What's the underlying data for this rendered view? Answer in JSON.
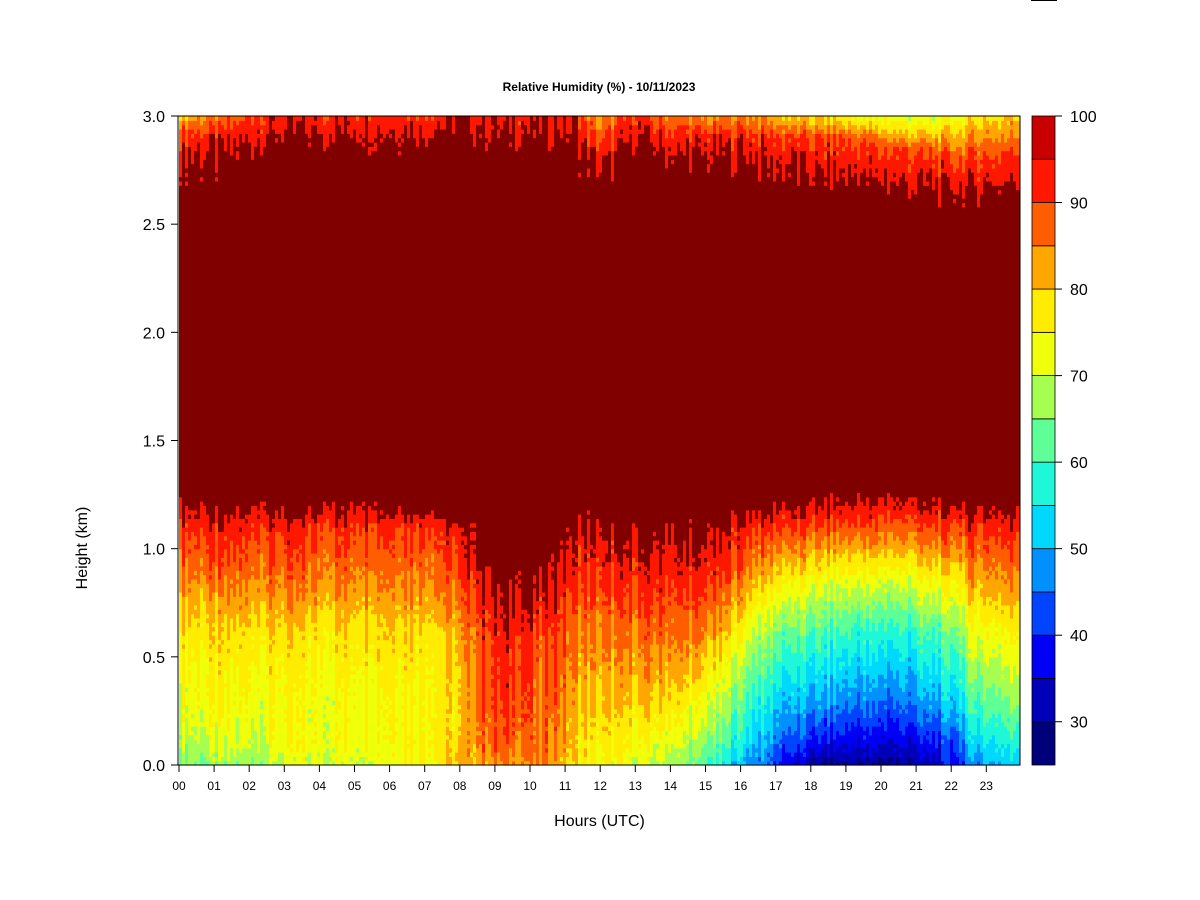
{
  "chart_data": {
    "type": "heatmap",
    "title": "Relative Humidity (%) - 10/11/2023",
    "xlabel": "Hours (UTC)",
    "ylabel": "Height (km)",
    "x_ticks": [
      "00",
      "01",
      "02",
      "03",
      "04",
      "05",
      "06",
      "07",
      "08",
      "09",
      "10",
      "11",
      "12",
      "13",
      "14",
      "15",
      "16",
      "17",
      "18",
      "19",
      "20",
      "21",
      "22",
      "23"
    ],
    "x_range": [
      0,
      23.9
    ],
    "y_ticks": [
      "0.0",
      "0.5",
      "1.0",
      "1.5",
      "2.0",
      "2.5",
      "3.0"
    ],
    "y_range": [
      0,
      3.0
    ],
    "colorbar": {
      "range": [
        25,
        100
      ],
      "ticks": [
        "30",
        "40",
        "50",
        "60",
        "70",
        "80",
        "90",
        "100"
      ],
      "levels": [
        25,
        30,
        35,
        40,
        45,
        50,
        55,
        60,
        65,
        70,
        75,
        80,
        85,
        90,
        95,
        100
      ],
      "colors": [
        "#00007a",
        "#0000b8",
        "#0000f5",
        "#0044ff",
        "#0090ff",
        "#00d8ff",
        "#1ef7d8",
        "#5fff97",
        "#a6ff50",
        "#f0ff0a",
        "#ffec00",
        "#ffa600",
        "#ff5e00",
        "#ff1800",
        "#c80000",
        "#800000"
      ]
    },
    "profiles": [
      {
        "hour": 0.0,
        "p": [
          [
            0,
            65
          ],
          [
            0.1,
            69
          ],
          [
            0.3,
            73
          ],
          [
            0.6,
            77
          ],
          [
            0.85,
            85
          ],
          [
            1.1,
            92
          ],
          [
            1.25,
            100
          ],
          [
            2.65,
            100
          ],
          [
            2.9,
            93
          ],
          [
            3.0,
            82
          ]
        ]
      },
      {
        "hour": 1.0,
        "p": [
          [
            0,
            65
          ],
          [
            0.1,
            70
          ],
          [
            0.3,
            74
          ],
          [
            0.6,
            77
          ],
          [
            0.85,
            85
          ],
          [
            1.1,
            92
          ],
          [
            1.25,
            100
          ],
          [
            2.65,
            100
          ],
          [
            2.9,
            93
          ],
          [
            3.0,
            84
          ]
        ]
      },
      {
        "hour": 2.0,
        "p": [
          [
            0,
            67
          ],
          [
            0.1,
            71
          ],
          [
            0.3,
            74
          ],
          [
            0.6,
            78
          ],
          [
            0.85,
            86
          ],
          [
            1.1,
            92
          ],
          [
            1.25,
            100
          ],
          [
            2.75,
            100
          ],
          [
            2.9,
            95
          ],
          [
            3.0,
            90
          ]
        ]
      },
      {
        "hour": 3.0,
        "p": [
          [
            0,
            70
          ],
          [
            0.1,
            73
          ],
          [
            0.3,
            74
          ],
          [
            0.6,
            78
          ],
          [
            0.85,
            86
          ],
          [
            1.1,
            92
          ],
          [
            1.25,
            100
          ],
          [
            2.8,
            100
          ],
          [
            2.9,
            97
          ],
          [
            3.0,
            93
          ]
        ]
      },
      {
        "hour": 4.0,
        "p": [
          [
            0,
            71
          ],
          [
            0.1,
            73
          ],
          [
            0.3,
            73
          ],
          [
            0.6,
            77
          ],
          [
            0.85,
            85
          ],
          [
            1.1,
            91
          ],
          [
            1.25,
            100
          ],
          [
            2.8,
            100
          ],
          [
            2.9,
            96
          ],
          [
            3.0,
            92
          ]
        ]
      },
      {
        "hour": 5.0,
        "p": [
          [
            0,
            72
          ],
          [
            0.1,
            74
          ],
          [
            0.3,
            75
          ],
          [
            0.6,
            79
          ],
          [
            0.85,
            86
          ],
          [
            1.1,
            92
          ],
          [
            1.25,
            100
          ],
          [
            2.8,
            100
          ],
          [
            2.9,
            97
          ],
          [
            3.0,
            93
          ]
        ]
      },
      {
        "hour": 6.0,
        "p": [
          [
            0,
            74
          ],
          [
            0.1,
            76
          ],
          [
            0.3,
            77
          ],
          [
            0.6,
            80
          ],
          [
            0.85,
            87
          ],
          [
            1.1,
            93
          ],
          [
            1.2,
            100
          ],
          [
            2.8,
            100
          ],
          [
            2.9,
            97
          ],
          [
            3.0,
            93
          ]
        ]
      },
      {
        "hour": 7.0,
        "p": [
          [
            0,
            75
          ],
          [
            0.1,
            77
          ],
          [
            0.3,
            76
          ],
          [
            0.6,
            79
          ],
          [
            0.85,
            86
          ],
          [
            1.1,
            92
          ],
          [
            1.2,
            100
          ],
          [
            2.8,
            100
          ],
          [
            2.9,
            97
          ],
          [
            3.0,
            93
          ]
        ]
      },
      {
        "hour": 8.0,
        "p": [
          [
            0,
            80
          ],
          [
            0.1,
            79
          ],
          [
            0.3,
            78
          ],
          [
            0.6,
            81
          ],
          [
            0.85,
            88
          ],
          [
            1.1,
            93
          ],
          [
            1.15,
            100
          ],
          [
            2.8,
            100
          ],
          [
            2.9,
            97
          ],
          [
            3.0,
            94
          ]
        ]
      },
      {
        "hour": 8.6,
        "p": [
          [
            0,
            83
          ],
          [
            0.1,
            87
          ],
          [
            0.3,
            89
          ],
          [
            0.6,
            91
          ],
          [
            0.85,
            95
          ],
          [
            1.0,
            100
          ],
          [
            2.8,
            100
          ],
          [
            2.9,
            97
          ],
          [
            3.0,
            95
          ]
        ]
      },
      {
        "hour": 9.3,
        "p": [
          [
            0,
            83
          ],
          [
            0.1,
            88
          ],
          [
            0.3,
            90
          ],
          [
            0.6,
            92
          ],
          [
            0.8,
            95
          ],
          [
            0.95,
            100
          ],
          [
            2.8,
            100
          ],
          [
            2.9,
            96
          ],
          [
            3.0,
            93
          ]
        ]
      },
      {
        "hour": 9.9,
        "p": [
          [
            0,
            84
          ],
          [
            0.1,
            88
          ],
          [
            0.3,
            91
          ],
          [
            0.6,
            94
          ],
          [
            0.8,
            97
          ],
          [
            0.9,
            100
          ],
          [
            2.8,
            100
          ],
          [
            3.0,
            94
          ]
        ]
      },
      {
        "hour": 10.25,
        "p": [
          [
            0,
            86
          ],
          [
            0.1,
            84
          ],
          [
            0.3,
            82
          ],
          [
            0.6,
            86
          ],
          [
            0.9,
            95
          ],
          [
            1.0,
            100
          ],
          [
            2.8,
            100
          ],
          [
            3.0,
            94
          ]
        ]
      },
      {
        "hour": 10.6,
        "p": [
          [
            0,
            84
          ],
          [
            0.1,
            88
          ],
          [
            0.3,
            90
          ],
          [
            0.6,
            93
          ],
          [
            0.85,
            97
          ],
          [
            1.0,
            100
          ],
          [
            2.8,
            100
          ],
          [
            3.0,
            94
          ]
        ]
      },
      {
        "hour": 11.2,
        "p": [
          [
            0,
            78
          ],
          [
            0.1,
            79
          ],
          [
            0.3,
            82
          ],
          [
            0.6,
            86
          ],
          [
            0.85,
            91
          ],
          [
            1.1,
            96
          ],
          [
            1.2,
            100
          ],
          [
            2.8,
            100
          ],
          [
            2.9,
            97
          ],
          [
            3.0,
            93
          ]
        ]
      },
      {
        "hour": 12.0,
        "p": [
          [
            0,
            73
          ],
          [
            0.1,
            76
          ],
          [
            0.3,
            79
          ],
          [
            0.6,
            84
          ],
          [
            0.85,
            90
          ],
          [
            1.1,
            95
          ],
          [
            1.2,
            100
          ],
          [
            2.62,
            100
          ],
          [
            2.8,
            94
          ],
          [
            3.0,
            82
          ]
        ]
      },
      {
        "hour": 13.0,
        "p": [
          [
            0,
            71
          ],
          [
            0.1,
            74
          ],
          [
            0.3,
            80
          ],
          [
            0.6,
            86
          ],
          [
            0.85,
            92
          ],
          [
            1.1,
            97
          ],
          [
            1.15,
            100
          ],
          [
            2.8,
            100
          ],
          [
            2.9,
            96
          ],
          [
            3.0,
            92
          ]
        ]
      },
      {
        "hour": 14.0,
        "p": [
          [
            0,
            68
          ],
          [
            0.1,
            72
          ],
          [
            0.3,
            79
          ],
          [
            0.6,
            87
          ],
          [
            0.85,
            92
          ],
          [
            1.1,
            97
          ],
          [
            1.15,
            100
          ],
          [
            2.7,
            100
          ],
          [
            2.9,
            93
          ],
          [
            3.0,
            86
          ]
        ]
      },
      {
        "hour": 15.0,
        "p": [
          [
            0,
            60
          ],
          [
            0.1,
            65
          ],
          [
            0.3,
            72
          ],
          [
            0.6,
            84
          ],
          [
            0.85,
            91
          ],
          [
            1.1,
            97
          ],
          [
            1.15,
            100
          ],
          [
            2.7,
            100
          ],
          [
            2.9,
            92
          ],
          [
            3.0,
            82
          ]
        ]
      },
      {
        "hour": 16.0,
        "p": [
          [
            0,
            50
          ],
          [
            0.1,
            56
          ],
          [
            0.3,
            63
          ],
          [
            0.6,
            75
          ],
          [
            0.85,
            86
          ],
          [
            1.1,
            94
          ],
          [
            1.2,
            100
          ],
          [
            2.7,
            100
          ],
          [
            2.9,
            93
          ],
          [
            3.0,
            86
          ]
        ]
      },
      {
        "hour": 16.6,
        "p": [
          [
            0,
            46
          ],
          [
            0.1,
            50
          ],
          [
            0.3,
            57
          ],
          [
            0.6,
            67
          ],
          [
            0.85,
            80
          ],
          [
            1.1,
            92
          ],
          [
            1.25,
            100
          ],
          [
            2.65,
            100
          ],
          [
            2.9,
            92
          ],
          [
            3.0,
            84
          ]
        ]
      },
      {
        "hour": 17.3,
        "p": [
          [
            0,
            36
          ],
          [
            0.1,
            43
          ],
          [
            0.3,
            51
          ],
          [
            0.6,
            62
          ],
          [
            0.85,
            76
          ],
          [
            1.1,
            90
          ],
          [
            1.25,
            100
          ],
          [
            2.6,
            100
          ],
          [
            2.9,
            91
          ],
          [
            3.0,
            80
          ]
        ]
      },
      {
        "hour": 18.2,
        "p": [
          [
            0,
            29
          ],
          [
            0.1,
            37
          ],
          [
            0.3,
            49
          ],
          [
            0.6,
            60
          ],
          [
            0.85,
            73
          ],
          [
            1.1,
            89
          ],
          [
            1.3,
            100
          ],
          [
            2.6,
            100
          ],
          [
            2.9,
            90
          ],
          [
            3.0,
            78
          ]
        ]
      },
      {
        "hour": 19.2,
        "p": [
          [
            0,
            29
          ],
          [
            0.1,
            36
          ],
          [
            0.3,
            47
          ],
          [
            0.6,
            58
          ],
          [
            0.85,
            72
          ],
          [
            1.1,
            89
          ],
          [
            1.3,
            100
          ],
          [
            2.6,
            100
          ],
          [
            2.9,
            89
          ],
          [
            3.0,
            74
          ]
        ]
      },
      {
        "hour": 20.3,
        "p": [
          [
            0,
            29
          ],
          [
            0.1,
            35
          ],
          [
            0.3,
            45
          ],
          [
            0.6,
            57
          ],
          [
            0.85,
            71
          ],
          [
            1.1,
            88
          ],
          [
            1.3,
            100
          ],
          [
            2.55,
            100
          ],
          [
            2.85,
            90
          ],
          [
            3.0,
            72
          ]
        ]
      },
      {
        "hour": 21.2,
        "p": [
          [
            0,
            31
          ],
          [
            0.1,
            37
          ],
          [
            0.3,
            48
          ],
          [
            0.6,
            59
          ],
          [
            0.85,
            73
          ],
          [
            1.1,
            89
          ],
          [
            1.3,
            100
          ],
          [
            2.55,
            100
          ],
          [
            2.85,
            89
          ],
          [
            3.0,
            70
          ]
        ]
      },
      {
        "hour": 22.0,
        "p": [
          [
            0,
            37
          ],
          [
            0.1,
            42
          ],
          [
            0.3,
            52
          ],
          [
            0.6,
            63
          ],
          [
            0.85,
            76
          ],
          [
            1.1,
            90
          ],
          [
            1.25,
            100
          ],
          [
            2.55,
            100
          ],
          [
            2.8,
            90
          ],
          [
            3.0,
            73
          ]
        ]
      },
      {
        "hour": 22.7,
        "p": [
          [
            0,
            48
          ],
          [
            0.1,
            54
          ],
          [
            0.3,
            62
          ],
          [
            0.6,
            73
          ],
          [
            0.85,
            83
          ],
          [
            1.1,
            92
          ],
          [
            1.25,
            100
          ],
          [
            2.55,
            100
          ],
          [
            2.8,
            91
          ],
          [
            3.0,
            78
          ]
        ]
      },
      {
        "hour": 23.9,
        "p": [
          [
            0,
            52
          ],
          [
            0.1,
            58
          ],
          [
            0.3,
            67
          ],
          [
            0.6,
            76
          ],
          [
            0.85,
            85
          ],
          [
            1.1,
            93
          ],
          [
            1.25,
            100
          ],
          [
            2.55,
            100
          ],
          [
            2.8,
            92
          ],
          [
            3.0,
            80
          ]
        ]
      }
    ]
  }
}
